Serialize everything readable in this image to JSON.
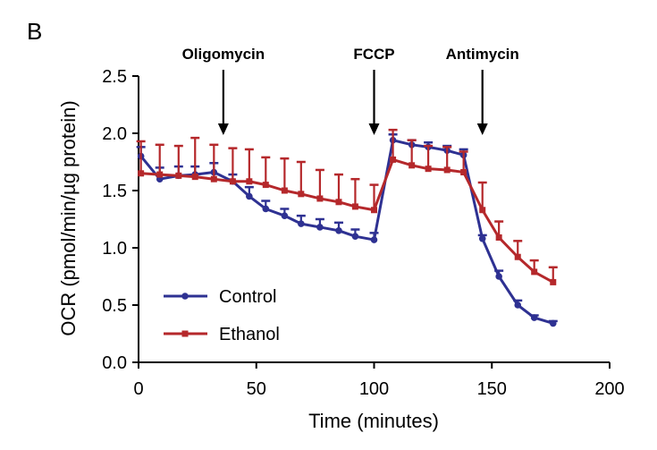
{
  "panel_label": "B",
  "colors": {
    "Control": "#2e3192",
    "Ethanol": "#b5282b",
    "axis": "#000000"
  },
  "chart_data": {
    "type": "line",
    "title": "",
    "xlabel": "Time (minutes)",
    "ylabel": "OCR (pmol/min/µg protein)",
    "xlim": [
      0,
      200
    ],
    "ylim": [
      0,
      2.5
    ],
    "xticks": [
      0,
      50,
      100,
      150,
      200
    ],
    "yticks": [
      0.0,
      0.5,
      1.0,
      1.5,
      2.0,
      2.5
    ],
    "xtick_labels": [
      "0",
      "50",
      "100",
      "150",
      "200"
    ],
    "ytick_labels": [
      "0.0",
      "0.5",
      "1.0",
      "1.5",
      "2.0",
      "2.5"
    ],
    "grid": false,
    "legend_position": "bottom-left",
    "series": [
      {
        "name": "Control",
        "marker": "circle",
        "x": [
          1,
          9,
          17,
          24,
          32,
          40,
          47,
          54,
          62,
          69,
          77,
          85,
          92,
          100,
          108,
          116,
          123,
          131,
          138,
          146,
          153,
          161,
          168,
          176
        ],
        "y": [
          1.8,
          1.6,
          1.63,
          1.64,
          1.66,
          1.58,
          1.45,
          1.34,
          1.28,
          1.21,
          1.18,
          1.15,
          1.1,
          1.07,
          1.94,
          1.9,
          1.88,
          1.85,
          1.81,
          1.08,
          0.75,
          0.5,
          0.39,
          0.34
        ],
        "error": [
          0.08,
          0.1,
          0.08,
          0.07,
          0.08,
          0.06,
          0.08,
          0.07,
          0.06,
          0.07,
          0.07,
          0.07,
          0.06,
          0.06,
          0.05,
          0.04,
          0.04,
          0.04,
          0.05,
          0.03,
          0.05,
          0.04,
          0.02,
          0.02
        ]
      },
      {
        "name": "Ethanol",
        "marker": "square",
        "x": [
          1,
          9,
          17,
          24,
          32,
          40,
          47,
          54,
          62,
          69,
          77,
          85,
          92,
          100,
          108,
          116,
          123,
          131,
          138,
          146,
          153,
          161,
          168,
          176
        ],
        "y": [
          1.65,
          1.64,
          1.63,
          1.62,
          1.6,
          1.58,
          1.58,
          1.55,
          1.5,
          1.47,
          1.43,
          1.4,
          1.36,
          1.33,
          1.77,
          1.72,
          1.69,
          1.68,
          1.66,
          1.33,
          1.09,
          0.92,
          0.79,
          0.7
        ],
        "error": [
          0.28,
          0.26,
          0.26,
          0.34,
          0.3,
          0.29,
          0.28,
          0.24,
          0.28,
          0.28,
          0.25,
          0.24,
          0.24,
          0.22,
          0.26,
          0.22,
          0.2,
          0.2,
          0.18,
          0.24,
          0.14,
          0.14,
          0.1,
          0.13
        ]
      }
    ],
    "annotations": [
      {
        "label": "Oligomycin",
        "x": 36
      },
      {
        "label": "FCCP",
        "x": 100
      },
      {
        "label": "Antimycin",
        "x": 146
      }
    ]
  }
}
